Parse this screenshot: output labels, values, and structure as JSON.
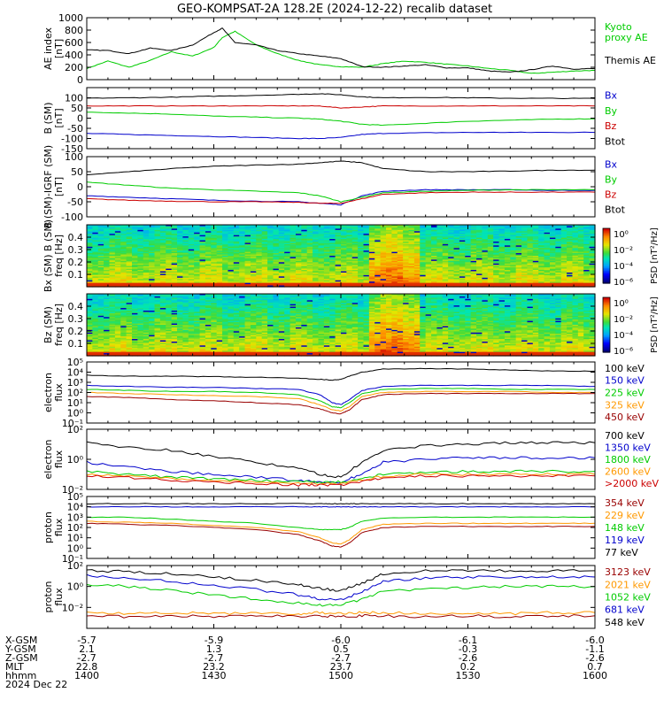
{
  "title": "GEO-KOMPSAT-2A 128.2E (2024-12-22) recalib dataset",
  "colors": {
    "black": "#000000",
    "red": "#cc0000",
    "green": "#00cc00",
    "blue": "#0000cc",
    "orange": "#ff9900",
    "darkred": "#990000",
    "lime": "#33ff33"
  },
  "chart_data": [
    {
      "id": "ae",
      "type": "line",
      "ylabel": [
        "AE index",
        "[nT]"
      ],
      "ylim": [
        0,
        1000
      ],
      "yticks": [
        "1000",
        "800",
        "600",
        "400",
        "200",
        "0"
      ],
      "ytick_values": [
        1000,
        800,
        600,
        400,
        200,
        0
      ],
      "x": [
        1400,
        1405,
        1410,
        1415,
        1420,
        1425,
        1430,
        1432,
        1435,
        1440,
        1445,
        1450,
        1455,
        1500,
        1505,
        1510,
        1515,
        1520,
        1525,
        1530,
        1535,
        1540,
        1545,
        1550,
        1555,
        1600
      ],
      "series": [
        {
          "name": "Kyoto proxy AE",
          "color": "#00cc00",
          "values": [
            180,
            300,
            200,
            310,
            450,
            380,
            520,
            680,
            780,
            560,
            420,
            310,
            240,
            210,
            200,
            260,
            300,
            280,
            250,
            220,
            180,
            150,
            100,
            120,
            140,
            150
          ]
        },
        {
          "name": "Themis AE",
          "color": "#000000",
          "values": [
            480,
            470,
            420,
            510,
            470,
            560,
            760,
            830,
            600,
            560,
            470,
            420,
            380,
            340,
            210,
            200,
            220,
            240,
            190,
            190,
            140,
            120,
            160,
            220,
            170,
            180
          ]
        }
      ],
      "legend": [
        {
          "text": "Kyoto",
          "color": "#00cc00"
        },
        {
          "text": "proxy AE",
          "color": "#00cc00"
        },
        {
          "text": "Themis AE",
          "color": "#000000"
        }
      ]
    },
    {
      "id": "bsm",
      "type": "line",
      "ylabel": [
        "B (SM)",
        "[nT]"
      ],
      "ylim": [
        -150,
        150
      ],
      "yticks": [
        "100",
        "50",
        "0",
        "-50",
        "-100",
        "-150"
      ],
      "ytick_values": [
        100,
        50,
        0,
        -50,
        -100,
        -150
      ],
      "x": [
        1400,
        1410,
        1420,
        1430,
        1440,
        1450,
        1455,
        1500,
        1505,
        1510,
        1520,
        1530,
        1540,
        1550,
        1600
      ],
      "series": [
        {
          "name": "Bx",
          "color": "#0000cc",
          "values": [
            -75,
            -80,
            -85,
            -90,
            -95,
            -100,
            -100,
            -95,
            -80,
            -75,
            -72,
            -70,
            -70,
            -70,
            -70
          ]
        },
        {
          "name": "By",
          "color": "#00cc00",
          "values": [
            30,
            25,
            20,
            10,
            5,
            0,
            -5,
            -15,
            -30,
            -35,
            -25,
            -15,
            -10,
            -5,
            -3
          ]
        },
        {
          "name": "Bz",
          "color": "#cc0000",
          "values": [
            60,
            60,
            60,
            60,
            60,
            60,
            60,
            50,
            55,
            60,
            60,
            60,
            60,
            60,
            60
          ]
        },
        {
          "name": "Btot",
          "color": "#000000",
          "values": [
            98,
            100,
            103,
            108,
            112,
            117,
            120,
            115,
            105,
            100,
            102,
            100,
            98,
            97,
            97
          ]
        }
      ]
    },
    {
      "id": "bgrf",
      "type": "line",
      "ylabel": [
        "B (SM)-IGRF (SM)",
        "[nT]"
      ],
      "ylim": [
        -100,
        100
      ],
      "yticks": [
        "100",
        "50",
        "0",
        "-50",
        "-100"
      ],
      "ytick_values": [
        100,
        50,
        0,
        -50,
        -100
      ],
      "x": [
        1400,
        1410,
        1420,
        1430,
        1440,
        1450,
        1455,
        1500,
        1505,
        1510,
        1520,
        1530,
        1540,
        1550,
        1600
      ],
      "series": [
        {
          "name": "Bx",
          "color": "#0000cc",
          "values": [
            -30,
            -35,
            -40,
            -45,
            -48,
            -50,
            -55,
            -60,
            -30,
            -15,
            -10,
            -10,
            -10,
            -12,
            -12
          ]
        },
        {
          "name": "By",
          "color": "#00cc00",
          "values": [
            15,
            5,
            -5,
            -10,
            -15,
            -20,
            -30,
            -50,
            -35,
            -20,
            -15,
            -12,
            -10,
            -10,
            -10
          ]
        },
        {
          "name": "Bz",
          "color": "#cc0000",
          "values": [
            -40,
            -45,
            -48,
            -50,
            -50,
            -52,
            -55,
            -55,
            -40,
            -25,
            -20,
            -18,
            -18,
            -18,
            -18
          ]
        },
        {
          "name": "Btot",
          "color": "#000000",
          "values": [
            40,
            50,
            60,
            68,
            72,
            75,
            80,
            85,
            80,
            60,
            50,
            50,
            52,
            55,
            55
          ]
        }
      ]
    },
    {
      "id": "bxpsd",
      "type": "heatmap",
      "ylabel": [
        "Bx (SM) B (SM)",
        "freq [Hz]"
      ],
      "ylim": [
        0,
        0.5
      ],
      "yticks": [
        "0.4",
        "0.3",
        "0.2",
        "0.1"
      ],
      "ytick_values": [
        0.4,
        0.3,
        0.2,
        0.1
      ],
      "colorbar": {
        "label": "PSD [nT²/Hz]",
        "ticks": [
          "10⁰",
          "10⁻²",
          "10⁻⁴",
          "10⁻⁶"
        ]
      }
    },
    {
      "id": "bzpsd",
      "type": "heatmap",
      "ylabel": [
        "Bz (SM)",
        "freq [Hz]"
      ],
      "ylim": [
        0,
        0.5
      ],
      "yticks": [
        "0.4",
        "0.3",
        "0.2",
        "0.1"
      ],
      "ytick_values": [
        0.4,
        0.3,
        0.2,
        0.1
      ],
      "colorbar": {
        "label": "PSD [nT²/Hz]",
        "ticks": [
          "10⁰",
          "10⁻²",
          "10⁻⁴",
          "10⁻⁶"
        ]
      }
    },
    {
      "id": "elec1",
      "type": "line",
      "ylabel": [
        "electron",
        "flux"
      ],
      "log": true,
      "ylim": [
        -1,
        5
      ],
      "yticks": [
        "10⁵",
        "10⁴",
        "10³",
        "10²",
        "10¹",
        "10⁰",
        "10⁻¹"
      ],
      "ytick_values": [
        5,
        4,
        3,
        2,
        1,
        0,
        -1
      ],
      "x": [
        1400,
        1410,
        1420,
        1430,
        1440,
        1450,
        1455,
        1458,
        1500,
        1502,
        1505,
        1510,
        1520,
        1530,
        1540,
        1550,
        1600
      ],
      "series": [
        {
          "name": "100 keV",
          "color": "#000000",
          "values": [
            3.7,
            3.6,
            3.6,
            3.55,
            3.5,
            3.4,
            3.3,
            3.2,
            3.3,
            3.6,
            4.0,
            4.3,
            4.35,
            4.3,
            4.2,
            4.1,
            4.1
          ]
        },
        {
          "name": "150 keV",
          "color": "#0000cc",
          "values": [
            2.7,
            2.6,
            2.5,
            2.5,
            2.4,
            2.3,
            1.8,
            1.0,
            0.8,
            1.3,
            2.2,
            2.6,
            2.7,
            2.7,
            2.7,
            2.7,
            2.6
          ]
        },
        {
          "name": "225 keV",
          "color": "#00cc00",
          "values": [
            2.3,
            2.2,
            2.1,
            2.1,
            2.0,
            1.8,
            1.2,
            0.6,
            0.5,
            1.0,
            1.9,
            2.3,
            2.4,
            2.4,
            2.3,
            2.3,
            2.3
          ]
        },
        {
          "name": "325 keV",
          "color": "#ff9900",
          "values": [
            2.0,
            1.9,
            1.8,
            1.7,
            1.6,
            1.4,
            0.8,
            0.3,
            0.2,
            0.6,
            1.6,
            2.0,
            2.1,
            2.1,
            2.1,
            2.0,
            2.0
          ]
        },
        {
          "name": "450 keV",
          "color": "#990000",
          "values": [
            1.6,
            1.5,
            1.3,
            1.2,
            1.0,
            0.8,
            0.4,
            0.0,
            -0.1,
            0.3,
            1.3,
            1.8,
            1.9,
            1.9,
            1.9,
            1.9,
            1.9
          ]
        }
      ]
    },
    {
      "id": "elec2",
      "type": "line",
      "ylabel": [
        "electron",
        "flux"
      ],
      "log": true,
      "ylim": [
        -2,
        2
      ],
      "yticks": [
        "10²",
        "10⁰",
        "10⁻²"
      ],
      "ytick_values": [
        2,
        0,
        -2
      ],
      "x": [
        1400,
        1410,
        1420,
        1430,
        1440,
        1450,
        1455,
        1500,
        1505,
        1510,
        1520,
        1530,
        1540,
        1550,
        1600
      ],
      "series": [
        {
          "name": "700 keV",
          "color": "#000000",
          "values": [
            1.1,
            0.8,
            0.6,
            0.2,
            -0.2,
            -0.6,
            -1.0,
            -1.2,
            -0.2,
            0.6,
            0.9,
            1.0,
            1.1,
            1.1,
            1.1
          ]
        },
        {
          "name": "1350 keV",
          "color": "#0000cc",
          "values": [
            -0.2,
            -0.5,
            -0.8,
            -1.0,
            -1.2,
            -1.4,
            -1.5,
            -1.5,
            -1.0,
            -0.2,
            0.0,
            0.1,
            0.1,
            0.1,
            0.1
          ]
        },
        {
          "name": "1800 keV",
          "color": "#00cc00",
          "values": [
            -0.8,
            -1.0,
            -1.2,
            -1.3,
            -1.4,
            -1.5,
            -1.5,
            -1.5,
            -1.3,
            -1.0,
            -0.9,
            -0.8,
            -0.8,
            -0.8,
            -0.8
          ]
        },
        {
          "name": "2600 keV",
          "color": "#ff9900",
          "values": [
            -1.0,
            -1.1,
            -1.3,
            -1.4,
            -1.5,
            -1.6,
            -1.6,
            -1.6,
            -1.4,
            -1.1,
            -1.0,
            -1.0,
            -1.0,
            -1.0,
            -1.0
          ]
        },
        {
          "name": ">2000 keV",
          "color": "#cc0000",
          "values": [
            -1.1,
            -1.2,
            -1.4,
            -1.5,
            -1.6,
            -1.7,
            -1.7,
            -1.7,
            -1.5,
            -1.2,
            -1.1,
            -1.1,
            -1.1,
            -1.1,
            -1.1
          ]
        }
      ]
    },
    {
      "id": "prot1",
      "type": "line",
      "ylabel": [
        "proton",
        "flux"
      ],
      "log": true,
      "ylim": [
        -1,
        5
      ],
      "yticks": [
        "10⁵",
        "10⁴",
        "10³",
        "10²",
        "10¹",
        "10⁰",
        "10⁻¹"
      ],
      "ytick_values": [
        5,
        4,
        3,
        2,
        1,
        0,
        -1
      ],
      "x": [
        1400,
        1410,
        1420,
        1430,
        1440,
        1450,
        1455,
        1458,
        1500,
        1502,
        1505,
        1510,
        1520,
        1530,
        1540,
        1550,
        1600
      ],
      "series": [
        {
          "name": "354 keV",
          "color": "#990000",
          "values": [
            2.4,
            2.3,
            2.2,
            2.0,
            1.8,
            1.3,
            0.7,
            0.2,
            0.1,
            0.5,
            1.5,
            2.0,
            2.1,
            2.1,
            2.1,
            2.1,
            2.1
          ]
        },
        {
          "name": "229 keV",
          "color": "#ff9900",
          "values": [
            2.6,
            2.5,
            2.4,
            2.2,
            2.0,
            1.6,
            1.0,
            0.5,
            0.4,
            0.8,
            1.8,
            2.3,
            2.4,
            2.4,
            2.4,
            2.4,
            2.4
          ]
        },
        {
          "name": "148 keV",
          "color": "#00cc00",
          "values": [
            3.0,
            3.0,
            2.8,
            2.6,
            2.4,
            2.0,
            1.8,
            1.8,
            1.8,
            2.0,
            2.6,
            2.9,
            3.0,
            3.0,
            3.0,
            3.0,
            3.0
          ]
        },
        {
          "name": "119 keV",
          "color": "#0000cc",
          "values": [
            4.0,
            4.0,
            4.0,
            4.0,
            4.0,
            4.0,
            4.0,
            4.0,
            4.0,
            4.0,
            4.0,
            4.0,
            4.0,
            4.0,
            4.0,
            4.0,
            4.0
          ]
        },
        {
          "name": "77 keV",
          "color": "#000000",
          "values": [
            4.3,
            4.3,
            4.3,
            4.3,
            4.3,
            4.3,
            4.3,
            4.3,
            4.3,
            4.3,
            4.3,
            4.3,
            4.3,
            4.3,
            4.3,
            4.3,
            4.3
          ]
        }
      ]
    },
    {
      "id": "prot2",
      "type": "line",
      "ylabel": [
        "proton",
        "flux"
      ],
      "log": true,
      "ylim": [
        -4,
        2
      ],
      "yticks": [
        "10²",
        "10⁰",
        "10⁻²"
      ],
      "ytick_values": [
        2,
        0,
        -2
      ],
      "x": [
        1400,
        1410,
        1420,
        1430,
        1440,
        1450,
        1455,
        1500,
        1505,
        1510,
        1520,
        1530,
        1540,
        1550,
        1600
      ],
      "series": [
        {
          "name": "3123 keV",
          "color": "#990000",
          "values": [
            -2.8,
            -2.9,
            -2.8,
            -2.9,
            -2.8,
            -2.9,
            -2.8,
            -2.9,
            -2.8,
            -2.8,
            -2.9,
            -2.8,
            -2.9,
            -2.8,
            -2.8
          ]
        },
        {
          "name": "2021 keV",
          "color": "#ff9900",
          "values": [
            -2.5,
            -2.6,
            -2.5,
            -2.6,
            -2.5,
            -2.6,
            -2.5,
            -2.6,
            -2.5,
            -2.5,
            -2.6,
            -2.5,
            -2.6,
            -2.5,
            -2.5
          ]
        },
        {
          "name": "1052 keV",
          "color": "#00cc00",
          "values": [
            0.2,
            0.0,
            -0.4,
            -0.8,
            -1.2,
            -1.6,
            -1.8,
            -1.8,
            -1.2,
            -0.5,
            -0.2,
            -0.1,
            0.0,
            0.0,
            0.0
          ]
        },
        {
          "name": "681 keV",
          "color": "#0000cc",
          "values": [
            1.0,
            0.8,
            0.5,
            0.1,
            -0.3,
            -0.8,
            -1.2,
            -1.3,
            -0.5,
            0.5,
            0.8,
            0.9,
            0.9,
            0.9,
            0.9
          ]
        },
        {
          "name": "548 keV",
          "color": "#000000",
          "values": [
            1.5,
            1.4,
            1.2,
            0.9,
            0.6,
            0.2,
            -0.2,
            -0.4,
            0.3,
            1.2,
            1.5,
            1.5,
            1.5,
            1.5,
            1.5
          ]
        }
      ]
    }
  ],
  "xaxis": {
    "row_labels": [
      "X-GSM",
      "Y-GSM",
      "Z-GSM",
      "MLT",
      "hhmm",
      "2024 Dec 22"
    ],
    "columns": [
      {
        "x": 1400,
        "vals": [
          "-5.7",
          "2.1",
          "-2.7",
          "22.8",
          "1400"
        ]
      },
      {
        "x": 1430,
        "vals": [
          "-5.9",
          "1.3",
          "-2.7",
          "23.2",
          "1430"
        ]
      },
      {
        "x": 1500,
        "vals": [
          "-6.0",
          "0.5",
          "-2.7",
          "23.7",
          "1500"
        ]
      },
      {
        "x": 1530,
        "vals": [
          "-6.1",
          "-0.3",
          "-2.6",
          "0.2",
          "1530"
        ]
      },
      {
        "x": 1600,
        "vals": [
          "-6.0",
          "-1.1",
          "-2.6",
          "0.7",
          "1600"
        ]
      }
    ]
  }
}
